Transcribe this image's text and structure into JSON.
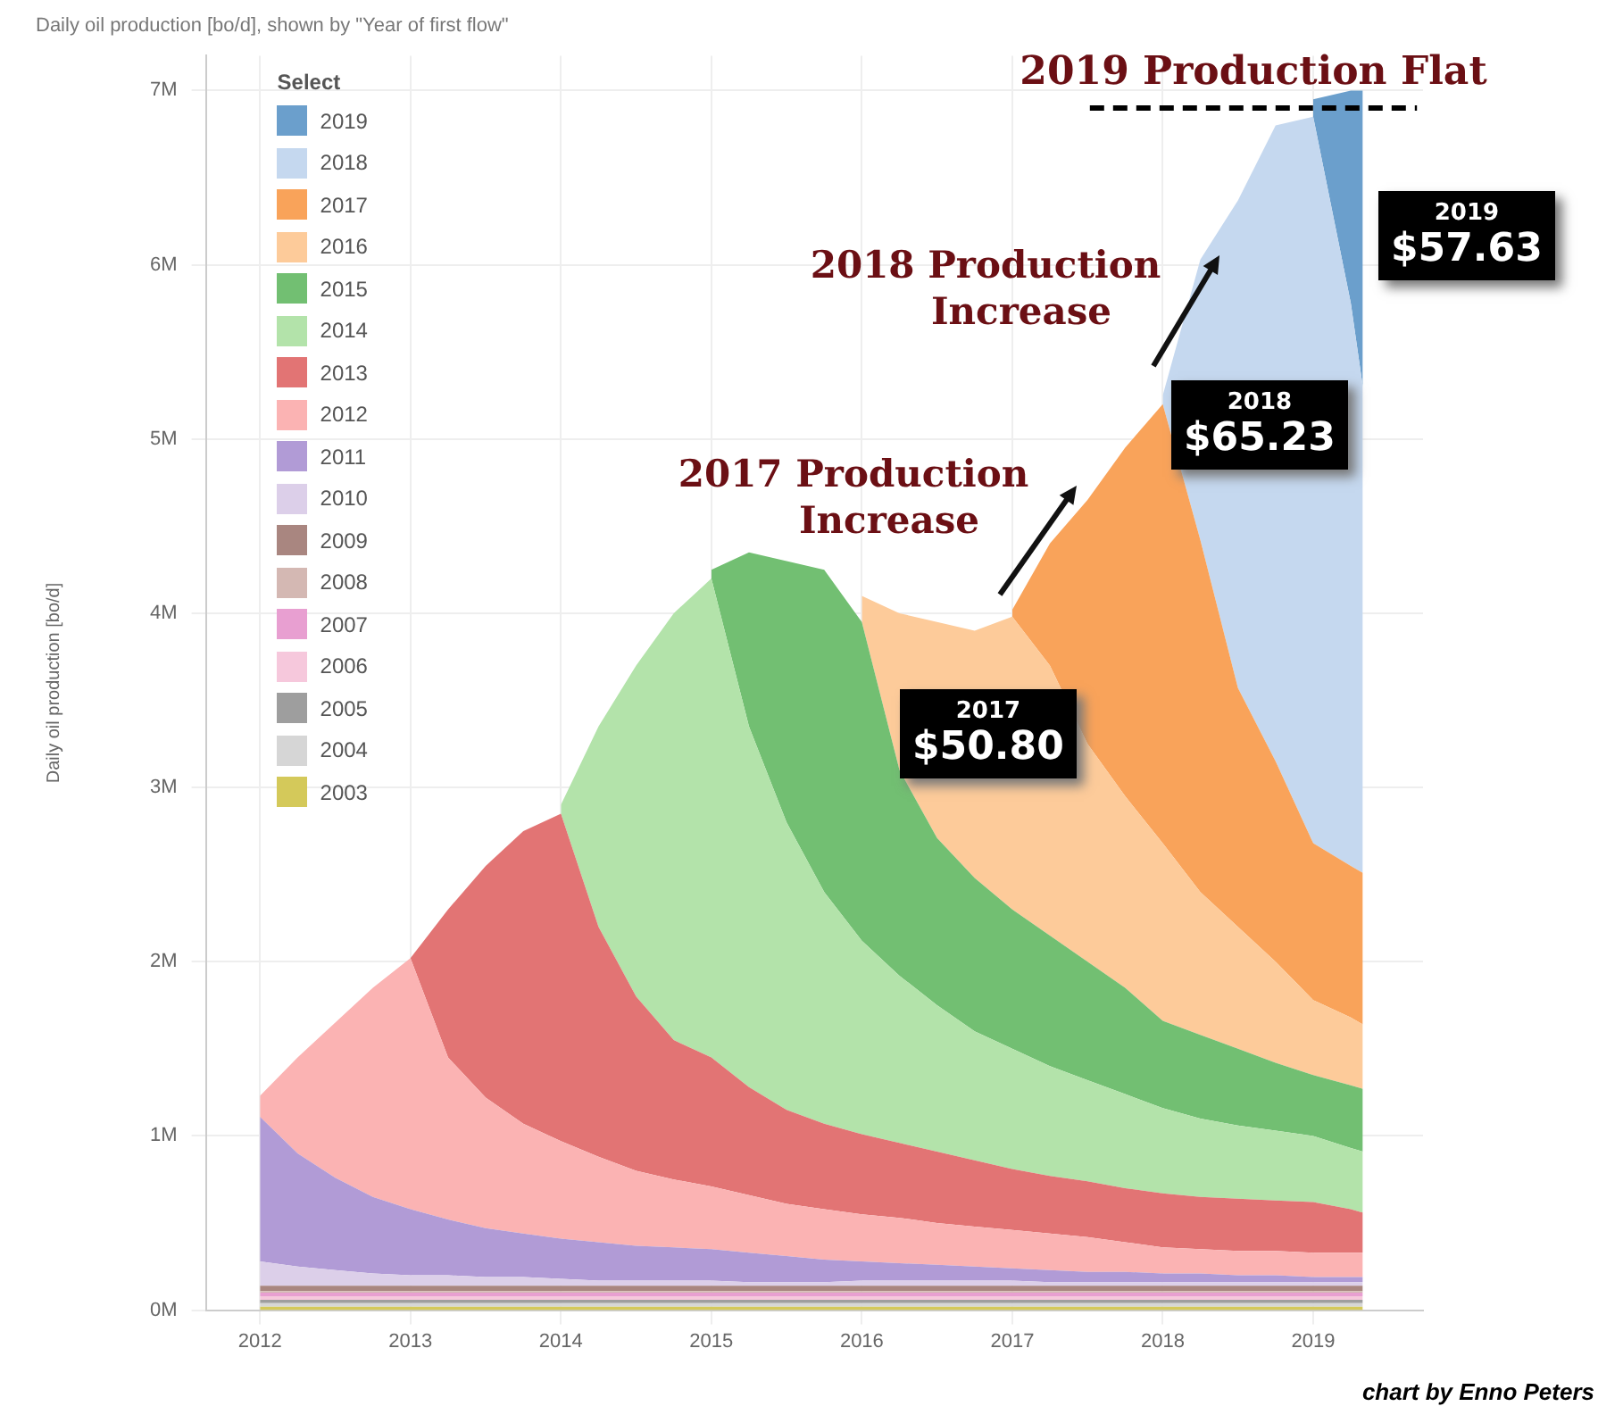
{
  "chart_data": {
    "type": "area",
    "title": "Daily oil production [bo/d], shown by \"Year of first flow\"",
    "ylabel": "Daily oil production [bo/d]",
    "legend_title": "Select",
    "legend": "top left",
    "grid": true,
    "stacked": true,
    "xlim": [
      2011.64,
      2019.73
    ],
    "xticks": [
      2012,
      2013,
      2014,
      2015,
      2016,
      2017,
      2018,
      2019
    ],
    "ylim": [
      0,
      7.2
    ],
    "yticks": [
      {
        "value": 0,
        "label": "0M"
      },
      {
        "value": 1,
        "label": "1M"
      },
      {
        "value": 2,
        "label": "2M"
      },
      {
        "value": 3,
        "label": "3M"
      },
      {
        "value": 4,
        "label": "4M"
      },
      {
        "value": 5,
        "label": "5M"
      },
      {
        "value": 6,
        "label": "6M"
      },
      {
        "value": 7,
        "label": "7M"
      }
    ],
    "x": [
      2012,
      2012.25,
      2012.5,
      2012.75,
      2013,
      2013.25,
      2013.5,
      2013.75,
      2014,
      2014.25,
      2014.5,
      2014.75,
      2015,
      2015.25,
      2015.5,
      2015.75,
      2016,
      2016.25,
      2016.5,
      2016.75,
      2017,
      2017.25,
      2017.5,
      2017.75,
      2018,
      2018.25,
      2018.5,
      2018.75,
      2019,
      2019.25,
      2019.33
    ],
    "series": [
      {
        "name": "2003",
        "color": "#d4c95a",
        "values": [
          0.02,
          0.02,
          0.02,
          0.02,
          0.02,
          0.02,
          0.02,
          0.02,
          0.02,
          0.02,
          0.02,
          0.02,
          0.02,
          0.02,
          0.02,
          0.02,
          0.02,
          0.02,
          0.02,
          0.02,
          0.02,
          0.02,
          0.02,
          0.02,
          0.02,
          0.02,
          0.02,
          0.02,
          0.02,
          0.02,
          0.02
        ]
      },
      {
        "name": "2004",
        "color": "#d6d6d6",
        "values": [
          0.02,
          0.02,
          0.02,
          0.02,
          0.02,
          0.02,
          0.02,
          0.02,
          0.02,
          0.02,
          0.02,
          0.02,
          0.02,
          0.02,
          0.02,
          0.02,
          0.02,
          0.02,
          0.02,
          0.02,
          0.02,
          0.02,
          0.02,
          0.02,
          0.02,
          0.02,
          0.02,
          0.02,
          0.02,
          0.02,
          0.02
        ]
      },
      {
        "name": "2005",
        "color": "#9e9e9e",
        "values": [
          0.02,
          0.02,
          0.02,
          0.02,
          0.02,
          0.02,
          0.02,
          0.02,
          0.02,
          0.02,
          0.02,
          0.02,
          0.02,
          0.02,
          0.02,
          0.02,
          0.02,
          0.02,
          0.02,
          0.02,
          0.02,
          0.02,
          0.02,
          0.02,
          0.02,
          0.02,
          0.02,
          0.02,
          0.02,
          0.02,
          0.02
        ]
      },
      {
        "name": "2006",
        "color": "#f6c8dc",
        "values": [
          0.02,
          0.02,
          0.02,
          0.02,
          0.02,
          0.02,
          0.02,
          0.02,
          0.02,
          0.02,
          0.02,
          0.02,
          0.02,
          0.02,
          0.02,
          0.02,
          0.02,
          0.02,
          0.02,
          0.02,
          0.02,
          0.02,
          0.02,
          0.02,
          0.02,
          0.02,
          0.02,
          0.02,
          0.02,
          0.02,
          0.02
        ]
      },
      {
        "name": "2007",
        "color": "#e89fd1",
        "values": [
          0.02,
          0.02,
          0.02,
          0.02,
          0.02,
          0.02,
          0.02,
          0.02,
          0.02,
          0.02,
          0.02,
          0.02,
          0.02,
          0.02,
          0.02,
          0.02,
          0.02,
          0.02,
          0.02,
          0.02,
          0.02,
          0.02,
          0.02,
          0.02,
          0.02,
          0.02,
          0.02,
          0.02,
          0.02,
          0.02,
          0.02
        ]
      },
      {
        "name": "2008",
        "color": "#d4b8b3",
        "values": [
          0.01,
          0.01,
          0.01,
          0.01,
          0.01,
          0.01,
          0.01,
          0.01,
          0.01,
          0.01,
          0.01,
          0.01,
          0.01,
          0.01,
          0.01,
          0.01,
          0.01,
          0.01,
          0.01,
          0.01,
          0.01,
          0.01,
          0.01,
          0.01,
          0.01,
          0.01,
          0.01,
          0.01,
          0.01,
          0.01,
          0.01
        ]
      },
      {
        "name": "2009",
        "color": "#a98680",
        "values": [
          0.03,
          0.03,
          0.03,
          0.03,
          0.03,
          0.03,
          0.03,
          0.03,
          0.03,
          0.03,
          0.03,
          0.03,
          0.03,
          0.03,
          0.03,
          0.03,
          0.03,
          0.03,
          0.03,
          0.03,
          0.03,
          0.03,
          0.03,
          0.03,
          0.03,
          0.03,
          0.03,
          0.03,
          0.03,
          0.03,
          0.03
        ]
      },
      {
        "name": "2010",
        "color": "#dccfe9",
        "values": [
          0.14,
          0.11,
          0.09,
          0.07,
          0.06,
          0.06,
          0.05,
          0.05,
          0.04,
          0.03,
          0.03,
          0.03,
          0.03,
          0.02,
          0.02,
          0.02,
          0.03,
          0.03,
          0.03,
          0.03,
          0.03,
          0.02,
          0.02,
          0.02,
          0.02,
          0.02,
          0.02,
          0.02,
          0.02,
          0.02,
          0.02
        ]
      },
      {
        "name": "2011",
        "color": "#b19bd6",
        "values": [
          0.83,
          0.65,
          0.53,
          0.44,
          0.38,
          0.32,
          0.28,
          0.25,
          0.23,
          0.22,
          0.2,
          0.19,
          0.18,
          0.17,
          0.15,
          0.13,
          0.11,
          0.1,
          0.09,
          0.08,
          0.07,
          0.07,
          0.06,
          0.06,
          0.05,
          0.05,
          0.04,
          0.04,
          0.03,
          0.03,
          0.03
        ]
      },
      {
        "name": "2012",
        "color": "#fbb3b3",
        "values": [
          0.12,
          0.55,
          0.89,
          1.2,
          1.44,
          0.93,
          0.75,
          0.63,
          0.56,
          0.49,
          0.43,
          0.39,
          0.36,
          0.33,
          0.3,
          0.29,
          0.27,
          0.26,
          0.24,
          0.23,
          0.22,
          0.21,
          0.2,
          0.17,
          0.15,
          0.14,
          0.14,
          0.14,
          0.14,
          0.14,
          0.14
        ]
      },
      {
        "name": "2013",
        "color": "#e27474",
        "values": [
          null,
          null,
          null,
          null,
          0,
          0.85,
          1.33,
          1.68,
          1.88,
          1.32,
          1.0,
          0.8,
          0.74,
          0.62,
          0.54,
          0.49,
          0.46,
          0.43,
          0.41,
          0.38,
          0.35,
          0.33,
          0.32,
          0.31,
          0.31,
          0.3,
          0.3,
          0.29,
          0.29,
          0.25,
          0.23
        ]
      },
      {
        "name": "2014",
        "color": "#b3e3aa",
        "values": [
          null,
          null,
          null,
          null,
          null,
          null,
          null,
          null,
          0.05,
          1.15,
          1.9,
          2.45,
          2.75,
          2.07,
          1.65,
          1.33,
          1.11,
          0.96,
          0.84,
          0.74,
          0.69,
          0.63,
          0.58,
          0.54,
          0.49,
          0.45,
          0.42,
          0.4,
          0.38,
          0.35,
          0.35
        ]
      },
      {
        "name": "2015",
        "color": "#72bf72",
        "values": [
          null,
          null,
          null,
          null,
          null,
          null,
          null,
          null,
          null,
          null,
          null,
          null,
          0.05,
          1.0,
          1.5,
          1.85,
          1.83,
          1.18,
          0.96,
          0.88,
          0.8,
          0.75,
          0.68,
          0.61,
          0.5,
          0.48,
          0.44,
          0.39,
          0.35,
          0.36,
          0.36
        ]
      },
      {
        "name": "2016",
        "color": "#fdcb9a",
        "values": [
          null,
          null,
          null,
          null,
          null,
          null,
          null,
          null,
          null,
          null,
          null,
          null,
          null,
          null,
          null,
          null,
          0.15,
          0.9,
          1.24,
          1.42,
          1.68,
          1.55,
          1.25,
          1.1,
          1.02,
          0.82,
          0.7,
          0.58,
          0.43,
          0.39,
          0.37
        ]
      },
      {
        "name": "2017",
        "color": "#f9a35a",
        "values": [
          null,
          null,
          null,
          null,
          null,
          null,
          null,
          null,
          null,
          null,
          null,
          null,
          null,
          null,
          null,
          null,
          null,
          null,
          null,
          null,
          0.04,
          0.7,
          1.4,
          2.0,
          2.52,
          2.02,
          1.37,
          1.15,
          0.9,
          0.87,
          0.87
        ]
      },
      {
        "name": "2018",
        "color": "#c5d8ef",
        "values": [
          null,
          null,
          null,
          null,
          null,
          null,
          null,
          null,
          null,
          null,
          null,
          null,
          null,
          null,
          null,
          null,
          null,
          null,
          null,
          null,
          null,
          null,
          null,
          null,
          0.05,
          1.61,
          2.8,
          3.65,
          4.17,
          3.23,
          2.79
        ]
      },
      {
        "name": "2019",
        "color": "#6b9fcc",
        "values": [
          null,
          null,
          null,
          null,
          null,
          null,
          null,
          null,
          null,
          null,
          null,
          null,
          null,
          null,
          null,
          null,
          null,
          null,
          null,
          null,
          null,
          null,
          null,
          null,
          null,
          null,
          null,
          null,
          0.1,
          1.22,
          1.7
        ]
      }
    ],
    "ref_lines": [
      {
        "axis": "y",
        "value": 6.9,
        "label": "2019 Production Flat",
        "line_style": "dashed",
        "color": "#000000"
      }
    ],
    "annotations": [
      "2017 Production\nIncrease",
      "2018 Production\nIncrease",
      "2017\n$50.80",
      "2018\n$65.23",
      "2019\n$57.63",
      "chart by Enno Peters"
    ]
  }
}
